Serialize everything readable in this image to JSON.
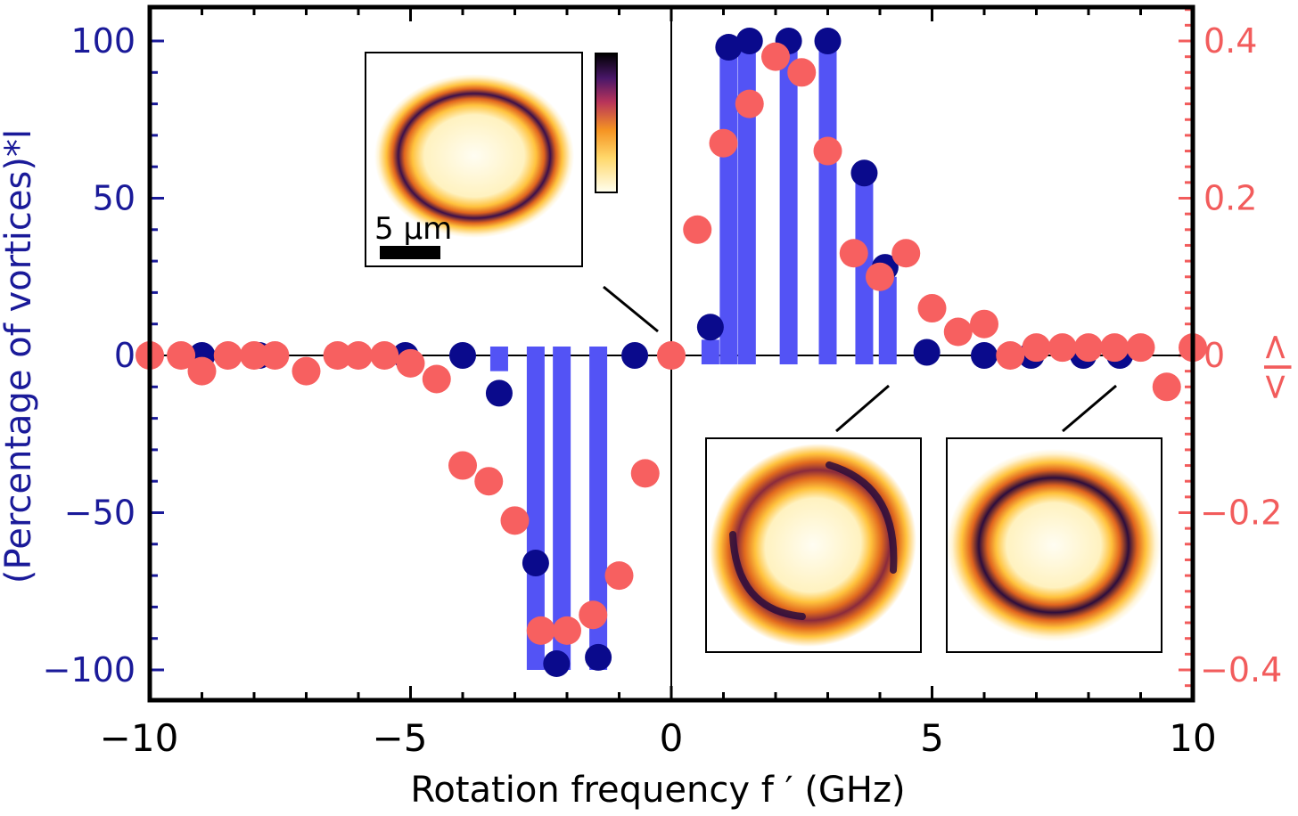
{
  "chart_data": {
    "type": "bar",
    "xlabel": "Rotation frequency f ′ (GHz)",
    "ylabel_left": "(Percentage of vortices)*l",
    "ylabel_right": "<l>",
    "xlim": [
      -10,
      10
    ],
    "ylim_left": [
      -110,
      110
    ],
    "ylim_right": [
      -0.44,
      0.44
    ],
    "x_ticks": [
      "−10",
      "−5",
      "0",
      "5",
      "10"
    ],
    "y_ticks_left": [
      "−100",
      "−50",
      "0",
      "50",
      "100"
    ],
    "y_ticks_right": [
      "−0.4",
      "−0.2",
      "0",
      "0.2",
      "0.4"
    ],
    "grid": false,
    "colors": {
      "bars": "#5353f5",
      "blue_points": "#0a0a8c",
      "red_points": "#f76060",
      "left_axis": "#1a1a99",
      "right_axis": "#f25c5c"
    },
    "series": [
      {
        "axis": "left",
        "kind": "bars",
        "points": [
          {
            "x": -3.3,
            "y": -5
          },
          {
            "x": -2.6,
            "y": -100
          },
          {
            "x": -2.1,
            "y": -100
          },
          {
            "x": -1.4,
            "y": -100
          },
          {
            "x": 0.75,
            "y": 5
          },
          {
            "x": 1.1,
            "y": 100
          },
          {
            "x": 1.45,
            "y": 100
          },
          {
            "x": 2.25,
            "y": 100
          },
          {
            "x": 3.0,
            "y": 100
          },
          {
            "x": 3.7,
            "y": 55
          },
          {
            "x": 4.15,
            "y": 25
          }
        ]
      },
      {
        "axis": "left",
        "kind": "points",
        "points": [
          {
            "x": -10,
            "y": 0
          },
          {
            "x": -9.0,
            "y": 0
          },
          {
            "x": -7.9,
            "y": 0
          },
          {
            "x": -6.4,
            "y": 0
          },
          {
            "x": -5.1,
            "y": 0
          },
          {
            "x": -4.0,
            "y": 0
          },
          {
            "x": -3.3,
            "y": -12
          },
          {
            "x": -2.6,
            "y": -66
          },
          {
            "x": -2.2,
            "y": -98
          },
          {
            "x": -1.4,
            "y": -96
          },
          {
            "x": -0.7,
            "y": 0
          },
          {
            "x": 0.75,
            "y": 9
          },
          {
            "x": 1.1,
            "y": 98
          },
          {
            "x": 1.5,
            "y": 100
          },
          {
            "x": 2.25,
            "y": 100
          },
          {
            "x": 3.0,
            "y": 100
          },
          {
            "x": 3.7,
            "y": 58
          },
          {
            "x": 4.1,
            "y": 28
          },
          {
            "x": 4.9,
            "y": 1
          },
          {
            "x": 6.0,
            "y": 0
          },
          {
            "x": 6.9,
            "y": 0
          },
          {
            "x": 7.9,
            "y": 0
          },
          {
            "x": 8.6,
            "y": 0
          }
        ]
      },
      {
        "axis": "right",
        "kind": "points",
        "points": [
          {
            "x": -10,
            "y": 0
          },
          {
            "x": -9.4,
            "y": 0
          },
          {
            "x": -9.0,
            "y": -0.02
          },
          {
            "x": -8.5,
            "y": 0
          },
          {
            "x": -8.0,
            "y": 0
          },
          {
            "x": -7.6,
            "y": 0
          },
          {
            "x": -7.0,
            "y": -0.02
          },
          {
            "x": -6.4,
            "y": 0
          },
          {
            "x": -6.0,
            "y": 0
          },
          {
            "x": -5.5,
            "y": 0
          },
          {
            "x": -5.0,
            "y": -0.01
          },
          {
            "x": -4.5,
            "y": -0.03
          },
          {
            "x": -4.0,
            "y": -0.14
          },
          {
            "x": -3.5,
            "y": -0.16
          },
          {
            "x": -3.0,
            "y": -0.21
          },
          {
            "x": -2.5,
            "y": -0.35
          },
          {
            "x": -2.0,
            "y": -0.35
          },
          {
            "x": -1.5,
            "y": -0.33
          },
          {
            "x": -1.0,
            "y": -0.28
          },
          {
            "x": -0.5,
            "y": -0.15
          },
          {
            "x": 0.0,
            "y": 0
          },
          {
            "x": 0.5,
            "y": 0.16
          },
          {
            "x": 1.0,
            "y": 0.27
          },
          {
            "x": 1.5,
            "y": 0.32
          },
          {
            "x": 2.0,
            "y": 0.38
          },
          {
            "x": 2.5,
            "y": 0.36
          },
          {
            "x": 3.0,
            "y": 0.26
          },
          {
            "x": 3.5,
            "y": 0.13
          },
          {
            "x": 4.0,
            "y": 0.1
          },
          {
            "x": 4.5,
            "y": 0.13
          },
          {
            "x": 5.0,
            "y": 0.06
          },
          {
            "x": 5.5,
            "y": 0.03
          },
          {
            "x": 6.0,
            "y": 0.04
          },
          {
            "x": 6.5,
            "y": 0
          },
          {
            "x": 7.0,
            "y": 0.01
          },
          {
            "x": 7.5,
            "y": 0.01
          },
          {
            "x": 8.0,
            "y": 0.01
          },
          {
            "x": 8.5,
            "y": 0.01
          },
          {
            "x": 9.0,
            "y": 0.01
          },
          {
            "x": 9.5,
            "y": -0.04
          },
          {
            "x": 10.0,
            "y": 0.01
          }
        ]
      }
    ],
    "insets": [
      {
        "shape": "ring-oval-thin",
        "anchor_x": 0,
        "scale_bar_label": "5 μm",
        "has_colorbar": true
      },
      {
        "shape": "ring-broken",
        "anchor_x": 4.2
      },
      {
        "shape": "ring-full",
        "anchor_x": 8.5
      }
    ]
  }
}
